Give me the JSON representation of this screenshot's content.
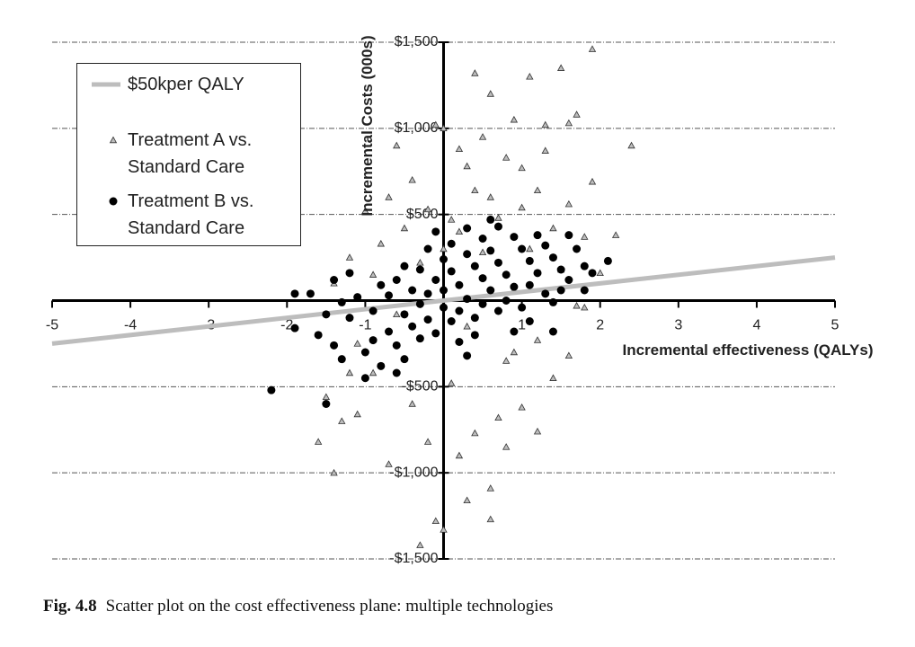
{
  "chart_data": {
    "type": "scatter",
    "caption_label": "Fig. 4.8",
    "caption": "Scatter plot on the cost effectiveness plane: multiple technologies",
    "x_label": "Incremental effectiveness (QALYs)",
    "y_label": "Incremental Costs (000s)",
    "xlim": [
      -5,
      5
    ],
    "ylim": [
      -1500,
      1500
    ],
    "xticks": [
      -5,
      -4,
      -3,
      -2,
      -1,
      1,
      2,
      3,
      4,
      5
    ],
    "yticks": [
      {
        "value": -1500,
        "label": "-$1,500"
      },
      {
        "value": -1000,
        "label": "-$1,000"
      },
      {
        "value": -500,
        "label": "-$500"
      },
      {
        "value": 500,
        "label": "$500"
      },
      {
        "value": 1000,
        "label": "$1,000"
      },
      {
        "value": 1500,
        "label": "$1,500"
      }
    ],
    "grid": true,
    "series": [
      {
        "name": "Treatment A vs. Standard Care",
        "marker": "triangle",
        "color": "#bdbdbd",
        "x": [
          1.9,
          1.5,
          0.4,
          1.1,
          0.9,
          1.7,
          1.6,
          2.4,
          0.0,
          -0.1,
          0.5,
          1.3,
          0.8,
          1.0,
          0.3,
          -0.4,
          -0.7,
          1.2,
          1.9,
          1.6,
          0.6,
          -0.2,
          0.1,
          0.7,
          -1.0,
          -0.5,
          1.4,
          1.8,
          -0.8,
          0.2,
          -1.2,
          1.1,
          0.5,
          -0.3,
          1.5,
          2.0,
          -1.4,
          0.9,
          1.7,
          -0.6,
          0.3,
          1.2,
          1.6,
          -1.1,
          0.8,
          1.4,
          -0.9,
          0.1,
          -1.5,
          -0.4,
          0.7,
          -1.3,
          0.4,
          -0.2,
          -1.6,
          0.8,
          0.2,
          -1.4,
          0.6,
          0.3,
          -0.3,
          0.6,
          0.0,
          -0.1,
          1.0,
          1.2,
          -0.7,
          -1.1,
          0.9,
          1.8,
          2.2,
          -0.9,
          0.0,
          0.4,
          1.0,
          -0.6,
          0.2,
          -1.2,
          1.3,
          0.6
        ],
        "values": [
          1460,
          1350,
          1320,
          1300,
          1050,
          1080,
          1030,
          900,
          1000,
          1020,
          950,
          870,
          830,
          770,
          780,
          700,
          600,
          640,
          690,
          560,
          600,
          530,
          470,
          480,
          520,
          420,
          420,
          370,
          330,
          400,
          250,
          300,
          280,
          220,
          180,
          160,
          100,
          60,
          -30,
          -80,
          -150,
          -230,
          -320,
          -250,
          -350,
          -450,
          -420,
          -480,
          -560,
          -600,
          -680,
          -700,
          -770,
          -820,
          -820,
          -850,
          -900,
          -1000,
          -1090,
          -1160,
          -1420,
          -1270,
          -1330,
          -1280,
          -620,
          -760,
          -950,
          -660,
          -300,
          -40,
          380,
          150,
          300,
          640,
          540,
          900,
          880,
          -420,
          1020,
          1200
        ]
      },
      {
        "name": "Treatment B vs. Standard Care",
        "marker": "circle",
        "color": "#000000",
        "x": [
          -2.2,
          -1.5,
          2.1,
          -1.9,
          -1.7,
          -1.9,
          -1.6,
          -1.4,
          -1.3,
          -1.2,
          -1.0,
          -0.9,
          -1.1,
          -1.3,
          -0.8,
          -0.9,
          -0.7,
          -0.6,
          -0.5,
          -0.7,
          -0.5,
          -0.4,
          -0.3,
          -0.6,
          -0.4,
          -0.3,
          -0.2,
          -0.1,
          -0.3,
          -0.1,
          -0.2,
          0.0,
          0.1,
          0.0,
          0.1,
          0.2,
          0.3,
          0.2,
          0.4,
          0.1,
          0.3,
          0.4,
          0.5,
          0.6,
          0.5,
          0.7,
          0.3,
          0.5,
          0.6,
          0.7,
          0.8,
          0.9,
          0.8,
          1.0,
          0.7,
          0.9,
          1.0,
          1.1,
          1.2,
          1.1,
          1.3,
          1.4,
          1.2,
          1.3,
          1.4,
          1.5,
          1.6,
          1.5,
          1.7,
          1.8,
          1.6,
          1.1,
          0.4,
          -0.2,
          -0.5,
          -0.8,
          0.9,
          1.4,
          -1.2,
          -1.5,
          0.0,
          0.2,
          -1.0,
          -0.6,
          1.9,
          0.6,
          -0.1,
          1.8,
          -1.4,
          0.3
        ],
        "values": [
          -520,
          -600,
          230,
          40,
          40,
          -160,
          -200,
          -260,
          -340,
          -100,
          -300,
          -230,
          20,
          -10,
          90,
          -60,
          -180,
          -260,
          -340,
          30,
          -80,
          -150,
          -220,
          120,
          60,
          -20,
          -110,
          -190,
          180,
          120,
          40,
          -40,
          -120,
          240,
          170,
          90,
          10,
          -60,
          -100,
          330,
          270,
          200,
          130,
          60,
          -20,
          -60,
          420,
          360,
          290,
          220,
          150,
          80,
          0,
          -40,
          430,
          370,
          300,
          230,
          160,
          90,
          40,
          -10,
          380,
          320,
          250,
          180,
          120,
          60,
          300,
          200,
          380,
          -120,
          -200,
          300,
          200,
          -380,
          -180,
          -180,
          160,
          -80,
          60,
          -240,
          -450,
          -420,
          160,
          470,
          400,
          60,
          120,
          -320
        ]
      },
      {
        "name": "$50kper QALY",
        "type": "line",
        "color": "#bdbdbd",
        "x": [
          -5,
          5
        ],
        "values": [
          -250,
          250
        ]
      }
    ]
  }
}
